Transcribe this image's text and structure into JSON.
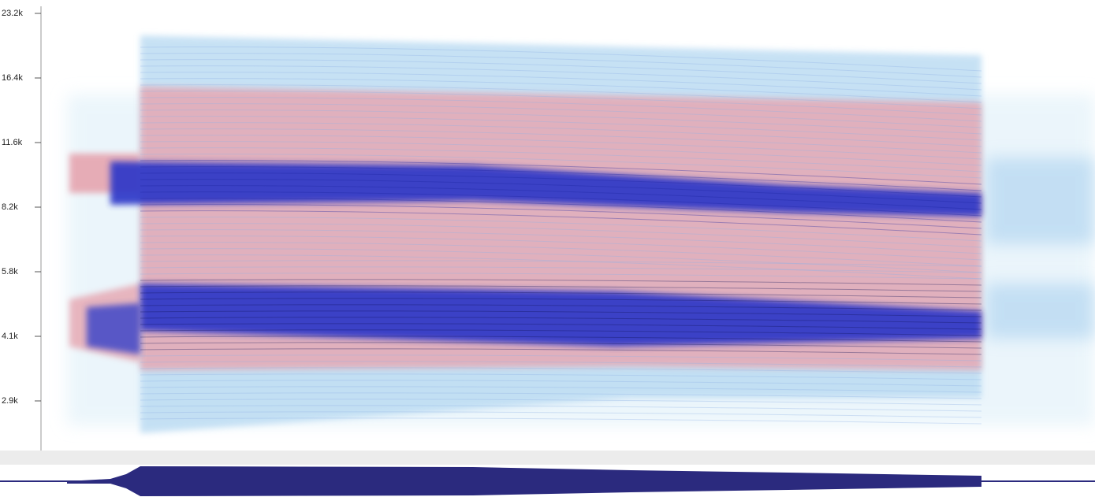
{
  "frequency_axis": {
    "ticks": [
      "23.2k",
      "16.4k",
      "11.6k",
      "8.2k",
      "5.8k",
      "4.1k",
      "2.9k"
    ]
  }
}
